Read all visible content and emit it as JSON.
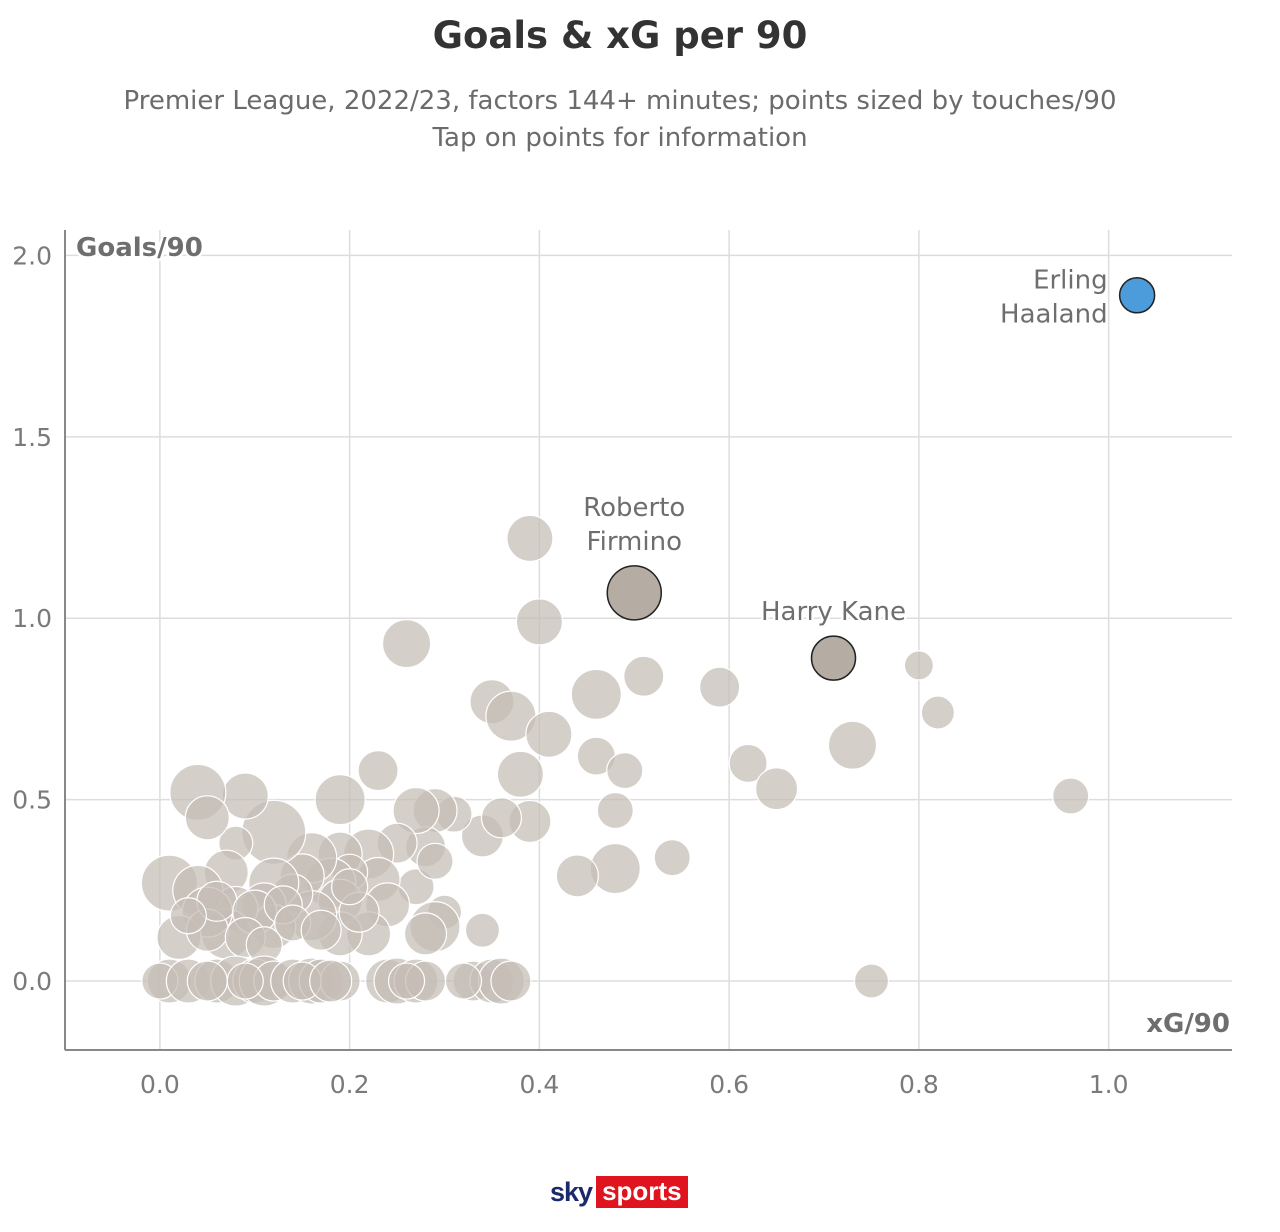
{
  "chart_data": {
    "type": "scatter",
    "title": "Goals & xG per 90",
    "subtitle_lines": [
      "Premier League, 2022/23, factors 144+ minutes; points sized by touches/90",
      "Tap on points for information"
    ],
    "xlabel": "xG/90",
    "ylabel": "Goals/90",
    "xlim": [
      -0.1,
      1.13
    ],
    "ylim": [
      -0.19,
      2.07
    ],
    "x_ticks": [
      "0.0",
      "0.2",
      "0.4",
      "0.6",
      "0.8",
      "1.0"
    ],
    "y_ticks": [
      "0.0",
      "0.5",
      "1.0",
      "1.5",
      "2.0"
    ],
    "grid": true,
    "size_encoding": "touches/90",
    "colors": {
      "default_point": "#c5bdb5",
      "highlight_point": "#b5aca3",
      "haaland_point": "#4c9bdb",
      "grid": "#dddddd",
      "axis": "#888888"
    },
    "highlighted": [
      {
        "label_lines": [
          "Erling",
          "Haaland"
        ],
        "x": 1.03,
        "y": 1.89,
        "size": 35,
        "color": "#4c9bdb",
        "label_anchor": "left"
      },
      {
        "label_lines": [
          "Roberto",
          "Firmino"
        ],
        "x": 0.5,
        "y": 1.07,
        "size": 54,
        "color": "#b5aca3",
        "label_anchor": "above"
      },
      {
        "label_lines": [
          "Harry Kane"
        ],
        "x": 0.71,
        "y": 0.89,
        "size": 44,
        "color": "#b5aca3",
        "label_anchor": "above"
      }
    ],
    "points": [
      {
        "x": 0.39,
        "y": 1.22,
        "size": 46
      },
      {
        "x": 0.4,
        "y": 0.99,
        "size": 46
      },
      {
        "x": 0.26,
        "y": 0.93,
        "size": 48
      },
      {
        "x": 0.51,
        "y": 0.84,
        "size": 40
      },
      {
        "x": 0.46,
        "y": 0.79,
        "size": 50
      },
      {
        "x": 0.59,
        "y": 0.81,
        "size": 40
      },
      {
        "x": 0.8,
        "y": 0.87,
        "size": 29
      },
      {
        "x": 0.82,
        "y": 0.74,
        "size": 33
      },
      {
        "x": 0.35,
        "y": 0.77,
        "size": 44
      },
      {
        "x": 0.37,
        "y": 0.73,
        "size": 50
      },
      {
        "x": 0.41,
        "y": 0.68,
        "size": 46
      },
      {
        "x": 0.73,
        "y": 0.65,
        "size": 48
      },
      {
        "x": 0.62,
        "y": 0.6,
        "size": 38
      },
      {
        "x": 0.46,
        "y": 0.62,
        "size": 38
      },
      {
        "x": 0.49,
        "y": 0.58,
        "size": 36
      },
      {
        "x": 0.38,
        "y": 0.57,
        "size": 46
      },
      {
        "x": 0.65,
        "y": 0.53,
        "size": 42
      },
      {
        "x": 0.96,
        "y": 0.51,
        "size": 36
      },
      {
        "x": 0.48,
        "y": 0.47,
        "size": 36
      },
      {
        "x": 0.39,
        "y": 0.44,
        "size": 42
      },
      {
        "x": 0.23,
        "y": 0.58,
        "size": 40
      },
      {
        "x": 0.54,
        "y": 0.34,
        "size": 36
      },
      {
        "x": 0.48,
        "y": 0.31,
        "size": 50
      },
      {
        "x": 0.44,
        "y": 0.29,
        "size": 42
      },
      {
        "x": 0.34,
        "y": 0.4,
        "size": 42
      },
      {
        "x": 0.36,
        "y": 0.45,
        "size": 40
      },
      {
        "x": 0.34,
        "y": 0.14,
        "size": 34
      },
      {
        "x": 0.75,
        "y": 0.0,
        "size": 34
      },
      {
        "x": 0.3,
        "y": 0.19,
        "size": 34
      },
      {
        "x": 0.31,
        "y": 0.46,
        "size": 36
      },
      {
        "x": 0.29,
        "y": 0.47,
        "size": 44
      },
      {
        "x": 0.28,
        "y": 0.37,
        "size": 40
      },
      {
        "x": 0.27,
        "y": 0.26,
        "size": 36
      },
      {
        "x": 0.29,
        "y": 0.15,
        "size": 50
      },
      {
        "x": 0.28,
        "y": 0.13,
        "size": 42
      },
      {
        "x": 0.27,
        "y": 0.47,
        "size": 46
      },
      {
        "x": 0.25,
        "y": 0.38,
        "size": 40
      },
      {
        "x": 0.29,
        "y": 0.33,
        "size": 36
      },
      {
        "x": 0.22,
        "y": 0.35,
        "size": 50
      },
      {
        "x": 0.23,
        "y": 0.28,
        "size": 44
      },
      {
        "x": 0.24,
        "y": 0.21,
        "size": 44
      },
      {
        "x": 0.22,
        "y": 0.13,
        "size": 44
      },
      {
        "x": 0.19,
        "y": 0.5,
        "size": 50
      },
      {
        "x": 0.19,
        "y": 0.35,
        "size": 44
      },
      {
        "x": 0.2,
        "y": 0.3,
        "size": 36
      },
      {
        "x": 0.18,
        "y": 0.27,
        "size": 50
      },
      {
        "x": 0.19,
        "y": 0.22,
        "size": 44
      },
      {
        "x": 0.19,
        "y": 0.13,
        "size": 44
      },
      {
        "x": 0.16,
        "y": 0.34,
        "size": 50
      },
      {
        "x": 0.15,
        "y": 0.29,
        "size": 44
      },
      {
        "x": 0.16,
        "y": 0.18,
        "size": 50
      },
      {
        "x": 0.14,
        "y": 0.24,
        "size": 40
      },
      {
        "x": 0.12,
        "y": 0.41,
        "size": 64
      },
      {
        "x": 0.12,
        "y": 0.27,
        "size": 50
      },
      {
        "x": 0.11,
        "y": 0.21,
        "size": 44
      },
      {
        "x": 0.12,
        "y": 0.15,
        "size": 44
      },
      {
        "x": 0.09,
        "y": 0.51,
        "size": 46
      },
      {
        "x": 0.08,
        "y": 0.38,
        "size": 34
      },
      {
        "x": 0.07,
        "y": 0.3,
        "size": 44
      },
      {
        "x": 0.08,
        "y": 0.2,
        "size": 44
      },
      {
        "x": 0.07,
        "y": 0.13,
        "size": 50
      },
      {
        "x": 0.04,
        "y": 0.52,
        "size": 56
      },
      {
        "x": 0.05,
        "y": 0.45,
        "size": 44
      },
      {
        "x": 0.01,
        "y": 0.27,
        "size": 56
      },
      {
        "x": 0.04,
        "y": 0.25,
        "size": 50
      },
      {
        "x": 0.05,
        "y": 0.19,
        "size": 50
      },
      {
        "x": 0.02,
        "y": 0.12,
        "size": 44
      },
      {
        "x": 0.05,
        "y": 0.14,
        "size": 42
      },
      {
        "x": 0.06,
        "y": 0.22,
        "size": 40
      },
      {
        "x": 0.1,
        "y": 0.19,
        "size": 44
      },
      {
        "x": 0.13,
        "y": 0.21,
        "size": 38
      },
      {
        "x": 0.14,
        "y": 0.16,
        "size": 36
      },
      {
        "x": 0.17,
        "y": 0.14,
        "size": 40
      },
      {
        "x": 0.21,
        "y": 0.19,
        "size": 40
      },
      {
        "x": 0.2,
        "y": 0.26,
        "size": 36
      },
      {
        "x": 0.09,
        "y": 0.12,
        "size": 40
      },
      {
        "x": 0.11,
        "y": 0.1,
        "size": 36
      },
      {
        "x": 0.03,
        "y": 0.18,
        "size": 36
      },
      {
        "x": 0.01,
        "y": 0.0,
        "size": 44
      },
      {
        "x": 0.0,
        "y": 0.0,
        "size": 36
      },
      {
        "x": 0.03,
        "y": 0.0,
        "size": 44
      },
      {
        "x": 0.06,
        "y": 0.0,
        "size": 44
      },
      {
        "x": 0.08,
        "y": 0.0,
        "size": 50
      },
      {
        "x": 0.1,
        "y": 0.0,
        "size": 44
      },
      {
        "x": 0.11,
        "y": 0.0,
        "size": 50
      },
      {
        "x": 0.12,
        "y": 0.0,
        "size": 40
      },
      {
        "x": 0.14,
        "y": 0.0,
        "size": 44
      },
      {
        "x": 0.16,
        "y": 0.0,
        "size": 46
      },
      {
        "x": 0.17,
        "y": 0.0,
        "size": 44
      },
      {
        "x": 0.19,
        "y": 0.0,
        "size": 40
      },
      {
        "x": 0.24,
        "y": 0.0,
        "size": 44
      },
      {
        "x": 0.25,
        "y": 0.0,
        "size": 46
      },
      {
        "x": 0.27,
        "y": 0.0,
        "size": 44
      },
      {
        "x": 0.28,
        "y": 0.0,
        "size": 40
      },
      {
        "x": 0.33,
        "y": 0.0,
        "size": 40
      },
      {
        "x": 0.35,
        "y": 0.0,
        "size": 44
      },
      {
        "x": 0.36,
        "y": 0.0,
        "size": 46
      },
      {
        "x": 0.37,
        "y": 0.0,
        "size": 40
      },
      {
        "x": 0.05,
        "y": 0.0,
        "size": 40
      },
      {
        "x": 0.09,
        "y": 0.0,
        "size": 36
      },
      {
        "x": 0.15,
        "y": 0.0,
        "size": 38
      },
      {
        "x": 0.18,
        "y": 0.0,
        "size": 42
      },
      {
        "x": 0.26,
        "y": 0.0,
        "size": 36
      },
      {
        "x": 0.32,
        "y": 0.0,
        "size": 36
      }
    ]
  },
  "logo": {
    "word1": "sky",
    "word2": "sports",
    "brand_color_dark": "#1a2a6c",
    "brand_color_red": "#e0141e"
  }
}
